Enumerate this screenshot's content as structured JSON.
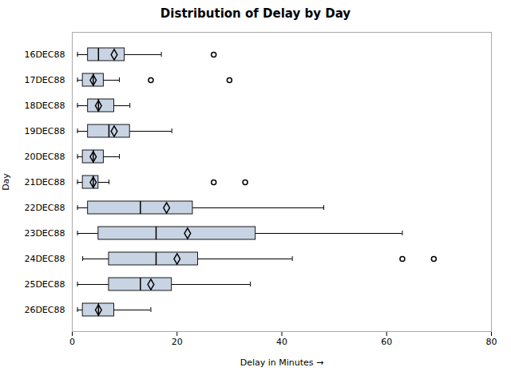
{
  "chart_data": {
    "type": "box",
    "orientation": "horizontal",
    "title": "Distribution of Delay by Day",
    "xlabel": "Delay in Minutes",
    "ylabel": "Day",
    "categories": [
      "16DEC88",
      "17DEC88",
      "18DEC88",
      "19DEC88",
      "20DEC88",
      "21DEC88",
      "22DEC88",
      "23DEC88",
      "24DEC88",
      "25DEC88",
      "26DEC88"
    ],
    "whislo": [
      1,
      1,
      1,
      1,
      1,
      1,
      1,
      1,
      2,
      1,
      1
    ],
    "q1": [
      3,
      2,
      3,
      3,
      2,
      2,
      3,
      5,
      7,
      7,
      2
    ],
    "median": [
      5,
      4,
      5,
      7,
      4,
      4,
      13,
      16,
      16,
      13,
      5
    ],
    "q3": [
      10,
      6,
      8,
      11,
      6,
      5,
      23,
      35,
      24,
      19,
      8
    ],
    "whishi": [
      17,
      9,
      11,
      19,
      9,
      7,
      48,
      63,
      42,
      34,
      15
    ],
    "mean": [
      8,
      4,
      5,
      8,
      4,
      4,
      18,
      22,
      20,
      15,
      5
    ],
    "fliers": [
      [
        27
      ],
      [
        15,
        30
      ],
      [],
      [],
      [],
      [
        27,
        33
      ],
      [],
      [],
      [
        63,
        69
      ],
      [],
      []
    ],
    "xlim": [
      0,
      80
    ],
    "xticks": [
      0,
      20,
      40,
      60,
      80
    ],
    "grid": false,
    "color": "#c8d4e3"
  }
}
